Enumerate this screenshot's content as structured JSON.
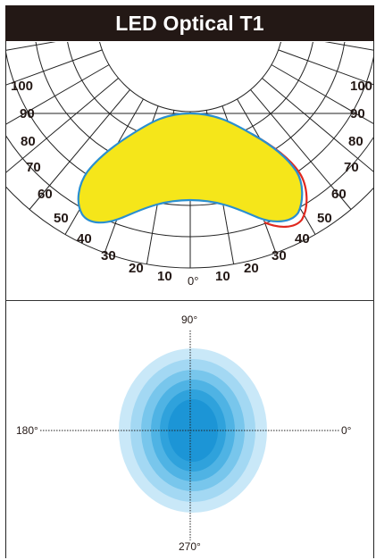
{
  "title": "LED Optical T1",
  "polar_plot": {
    "left_labels": [
      "100",
      "90",
      "80",
      "70",
      "60",
      "50",
      "40",
      "30",
      "20",
      "10"
    ],
    "right_labels": [
      "100",
      "90",
      "80",
      "70",
      "60",
      "50",
      "40",
      "30",
      "20",
      "10"
    ],
    "center_label": "0°",
    "curve_colors": {
      "fill": "#f5e61a",
      "blue": "#2a8fd0",
      "red": "#e0281e"
    }
  },
  "beam_plot": {
    "top_label": "90°",
    "bottom_label": "270°",
    "left_label": "180°",
    "right_label": "0°",
    "ring_colors": [
      "#c9e8f8",
      "#a3d8f3",
      "#78c6ec",
      "#4fb3e4",
      "#2fa2dc",
      "#1c95d6"
    ]
  }
}
